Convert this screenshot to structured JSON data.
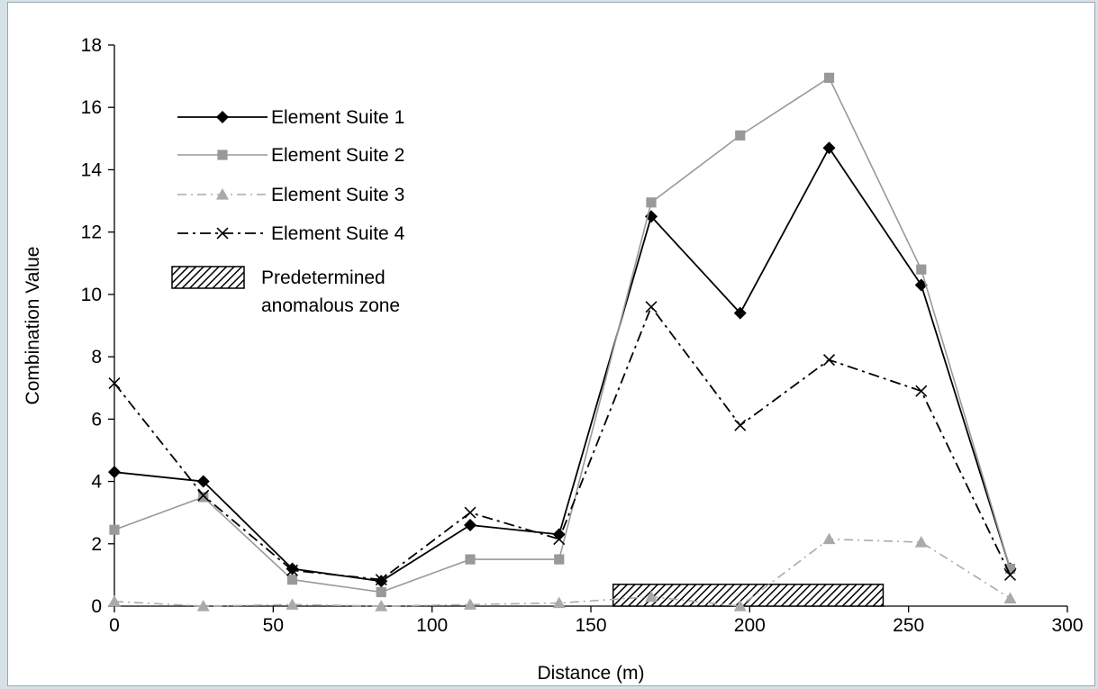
{
  "chart_data": {
    "type": "line",
    "title": "",
    "xlabel": "Distance (m)",
    "ylabel": "Combination Value",
    "xlim": [
      0,
      300
    ],
    "ylim": [
      0,
      18
    ],
    "xticks": [
      0,
      50,
      100,
      150,
      200,
      250,
      300
    ],
    "yticks": [
      0,
      2,
      4,
      6,
      8,
      10,
      12,
      14,
      16,
      18
    ],
    "grid": false,
    "legend_position": "top-left",
    "x": [
      0,
      28,
      56,
      84,
      112,
      140,
      169,
      197,
      225,
      254,
      282
    ],
    "series": [
      {
        "name": "Element Suite 1",
        "values": [
          4.3,
          4.0,
          1.2,
          0.8,
          2.6,
          2.3,
          12.5,
          9.4,
          14.7,
          10.3,
          1.2
        ],
        "color": "#000000",
        "marker": "diamond",
        "line": "solid"
      },
      {
        "name": "Element Suite 2",
        "values": [
          2.45,
          3.5,
          0.85,
          0.45,
          1.5,
          1.5,
          12.95,
          15.1,
          16.95,
          10.8,
          1.2
        ],
        "color": "#999999",
        "marker": "square",
        "line": "solid"
      },
      {
        "name": "Element Suite 3",
        "values": [
          0.15,
          0.0,
          0.05,
          0.0,
          0.05,
          0.1,
          0.3,
          0.0,
          2.15,
          2.05,
          0.25
        ],
        "color": "#aaaaaa",
        "marker": "triangle",
        "line": "dashdot"
      },
      {
        "name": "Element Suite 4",
        "values": [
          7.15,
          3.55,
          1.15,
          0.85,
          3.0,
          2.15,
          9.6,
          5.8,
          7.9,
          6.9,
          1.0
        ],
        "color": "#000000",
        "marker": "x",
        "line": "dashdot"
      }
    ],
    "anomalous_zone": {
      "label_line1": "Predetermined",
      "label_line2": "anomalous zone",
      "x_start": 157,
      "x_end": 242,
      "y_top": 0.7
    }
  }
}
